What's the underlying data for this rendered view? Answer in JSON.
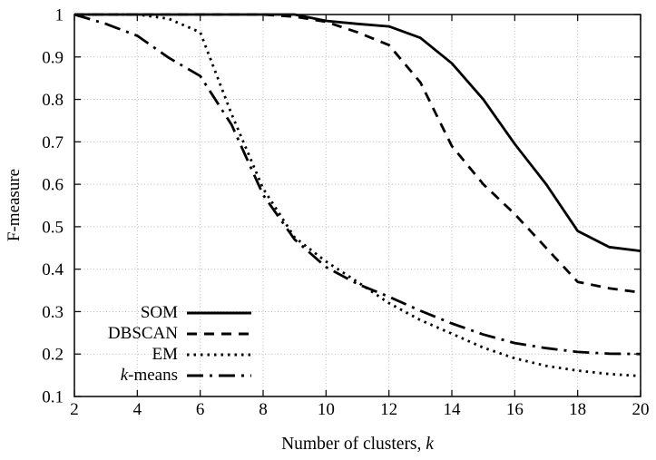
{
  "chart_data": {
    "type": "line",
    "title": "",
    "xlabel": {
      "prefix": "Number of clusters, ",
      "italic": "k"
    },
    "ylabel": "F-measure",
    "x_range": [
      2,
      20
    ],
    "y_range": [
      0.1,
      1.0
    ],
    "x_ticks": [
      2,
      4,
      6,
      8,
      10,
      12,
      14,
      16,
      18,
      20
    ],
    "y_ticks": [
      0.1,
      0.2,
      0.3,
      0.4,
      0.5,
      0.6,
      0.7,
      0.8,
      0.9,
      1.0
    ],
    "y_tick_labels": [
      "0.1",
      "0.2",
      "0.3",
      "0.4",
      "0.5",
      "0.6",
      "0.7",
      "0.8",
      "0.9",
      "1"
    ],
    "grid": true,
    "legend_position": "bottom-left",
    "x": [
      2,
      3,
      4,
      5,
      6,
      7,
      8,
      9,
      10,
      11,
      12,
      13,
      14,
      15,
      16,
      17,
      18,
      19,
      20
    ],
    "series": [
      {
        "name": "SOM",
        "dash": "solid",
        "values": [
          1.0,
          1.0,
          1.0,
          1.0,
          1.0,
          1.0,
          1.0,
          1.0,
          0.985,
          0.978,
          0.972,
          0.945,
          0.885,
          0.8,
          0.695,
          0.6,
          0.49,
          0.452,
          0.443
        ]
      },
      {
        "name": "DBSCAN",
        "dash": "dashed",
        "values": [
          1.0,
          1.0,
          1.0,
          1.0,
          1.0,
          1.0,
          1.0,
          0.995,
          0.983,
          0.958,
          0.928,
          0.84,
          0.69,
          0.6,
          0.53,
          0.45,
          0.37,
          0.355,
          0.345
        ]
      },
      {
        "name": "EM",
        "dash": "dotted",
        "values": [
          1.0,
          1.0,
          1.0,
          0.99,
          0.958,
          0.765,
          0.59,
          0.475,
          0.418,
          0.37,
          0.32,
          0.28,
          0.248,
          0.215,
          0.19,
          0.172,
          0.161,
          0.153,
          0.148
        ]
      },
      {
        "name": "k-means",
        "label_parts": {
          "italic": "k",
          "rest": "-means"
        },
        "dash": "dashdot",
        "values": [
          1.0,
          0.978,
          0.95,
          0.898,
          0.855,
          0.74,
          0.575,
          0.47,
          0.405,
          0.365,
          0.335,
          0.302,
          0.272,
          0.246,
          0.226,
          0.214,
          0.205,
          0.201,
          0.2
        ]
      }
    ],
    "colors": {
      "line": "#000000",
      "grid": "#b9b9b9",
      "border": "#111111",
      "background": "#ffffff"
    }
  }
}
